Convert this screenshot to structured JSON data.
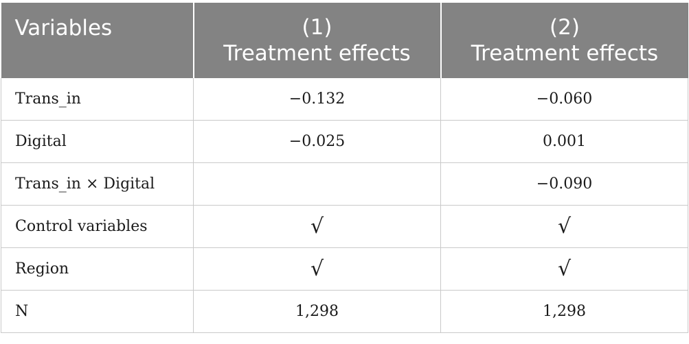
{
  "header": {
    "variables": "Variables",
    "col1_number": "(1)",
    "col1_title": "Treatment effects",
    "col2_number": "(2)",
    "col2_title": "Treatment effects"
  },
  "rows": [
    {
      "label": "Trans_in",
      "col1": "−0.132",
      "col2": "−0.060"
    },
    {
      "label": "Digital",
      "col1": "−0.025",
      "col2": "0.001"
    },
    {
      "label": "Trans_in × Digital",
      "col1": "",
      "col2": "−0.090"
    },
    {
      "label": "Control variables",
      "col1": "√",
      "col2": "√"
    },
    {
      "label": "Region",
      "col1": "√",
      "col2": "√"
    },
    {
      "label": "N",
      "col1": "1,298",
      "col2": "1,298"
    }
  ]
}
